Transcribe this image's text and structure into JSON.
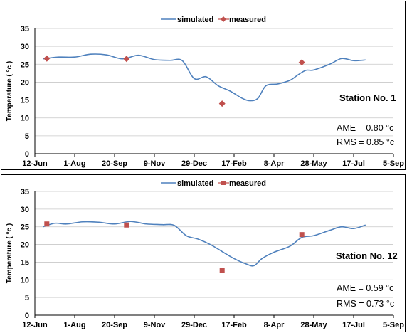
{
  "chart_data": [
    {
      "type": "line",
      "xlabel": "",
      "ylabel": "Temperature ( °c )",
      "ylim": [
        0,
        35
      ],
      "yticks": [
        0,
        5,
        10,
        15,
        20,
        25,
        30,
        35
      ],
      "xticks": [
        "12-Jun",
        "1-Aug",
        "20-Sep",
        "9-Nov",
        "29-Dec",
        "17-Feb",
        "8-Apr",
        "28-May",
        "17-Jul",
        "5-Sep"
      ],
      "grid": true,
      "legend": "top",
      "station": "Station No. 1",
      "ame": "AME =  0.80 °c",
      "rms": "RMS = 0.85 °c",
      "series": [
        {
          "name": "simulated",
          "color": "#4f81bd",
          "marker": "none",
          "points": [
            [
              1,
              26.5
            ],
            [
              3,
              27
            ],
            [
              5,
              27
            ],
            [
              7,
              27.8
            ],
            [
              9,
              27.6
            ],
            [
              11,
              26.5
            ],
            [
              13,
              27.5
            ],
            [
              15,
              26.3
            ],
            [
              17,
              26.1
            ],
            [
              18.5,
              26
            ],
            [
              20,
              21
            ],
            [
              21.5,
              21.5
            ],
            [
              23,
              19
            ],
            [
              24.5,
              17.5
            ],
            [
              26,
              15.5
            ],
            [
              27,
              14.8
            ],
            [
              28,
              15.5
            ],
            [
              29,
              19
            ],
            [
              30.5,
              19.5
            ],
            [
              32,
              20.5
            ],
            [
              33,
              22
            ],
            [
              34,
              23.3
            ],
            [
              35,
              23.4
            ],
            [
              37,
              25
            ],
            [
              38.5,
              26.6
            ],
            [
              40,
              26
            ],
            [
              41.5,
              26.2
            ]
          ]
        },
        {
          "name": "measured",
          "color": "#c0504d",
          "marker": "diamond",
          "points": [
            [
              1.5,
              26.6
            ],
            [
              11.5,
              26.5
            ],
            [
              23.5,
              14
            ],
            [
              33.5,
              25.5
            ]
          ]
        }
      ]
    },
    {
      "type": "line",
      "xlabel": "",
      "ylabel": "Temperature ( °c )",
      "ylim": [
        0,
        35
      ],
      "yticks": [
        0,
        5,
        10,
        15,
        20,
        25,
        30,
        35
      ],
      "xticks": [
        "12-Jun",
        "1-Aug",
        "20-Sep",
        "9-Nov",
        "29-Dec",
        "17-Feb",
        "8-Apr",
        "28-May",
        "17-Jul",
        "5-Sep"
      ],
      "grid": true,
      "legend": "top",
      "station": "Station No. 12",
      "ame": "AME =  0.59 °c",
      "rms": "RMS = 0.73 °c",
      "series": [
        {
          "name": "simulated",
          "color": "#4f81bd",
          "marker": "none",
          "points": [
            [
              1,
              25
            ],
            [
              2.5,
              26
            ],
            [
              4,
              25.8
            ],
            [
              6,
              26.4
            ],
            [
              8,
              26.3
            ],
            [
              10,
              25.8
            ],
            [
              12,
              26.5
            ],
            [
              14,
              25.8
            ],
            [
              16,
              25.6
            ],
            [
              17.5,
              25.4
            ],
            [
              19,
              22.5
            ],
            [
              20.5,
              21.5
            ],
            [
              22,
              20
            ],
            [
              23.5,
              18
            ],
            [
              25,
              16
            ],
            [
              26.5,
              14.5
            ],
            [
              27.5,
              14
            ],
            [
              28.5,
              16
            ],
            [
              30,
              17.8
            ],
            [
              32,
              19.5
            ],
            [
              33.5,
              22
            ],
            [
              35,
              22.5
            ],
            [
              37,
              24
            ],
            [
              38.5,
              25
            ],
            [
              40,
              24.5
            ],
            [
              41.5,
              25.5
            ]
          ]
        },
        {
          "name": "measured",
          "color": "#c0504d",
          "marker": "square",
          "points": [
            [
              1.5,
              25.8
            ],
            [
              11.5,
              25.5
            ],
            [
              23.5,
              12.7
            ],
            [
              33.5,
              22.8
            ]
          ]
        }
      ]
    }
  ]
}
